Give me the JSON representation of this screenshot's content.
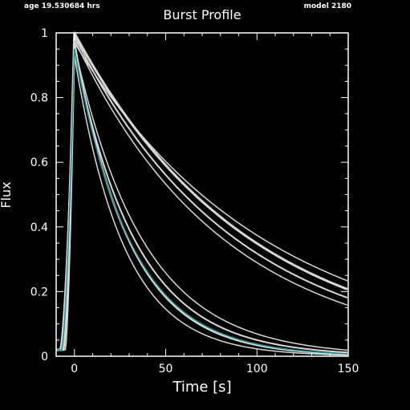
{
  "header": {
    "age_label": "age 19.530684 hrs",
    "model_label": "model 2180"
  },
  "colors": {
    "background": "#000000",
    "axes": "#ffffff",
    "curve": "#d8d8d8",
    "observed": "#1a8f8f"
  },
  "chart_data": {
    "type": "line",
    "title": "Burst Profile",
    "xlabel": "Time [s]",
    "ylabel": "Flux",
    "xlim": [
      -10,
      150
    ],
    "ylim": [
      0,
      1
    ],
    "xticks": [
      0,
      50,
      100,
      150
    ],
    "yticks": [
      0,
      0.2,
      0.4,
      0.6,
      0.8,
      1
    ],
    "ytick_labels": [
      "0",
      "0.2",
      "0.4",
      "0.6",
      "0.8",
      "1"
    ],
    "grid": false,
    "series": [
      {
        "group": "slow",
        "peak": 1.0,
        "t0": -7,
        "tau": 95,
        "width": 3.0
      },
      {
        "group": "slow",
        "peak": 0.99,
        "t0": -6.5,
        "tau": 88,
        "width": 2.0
      },
      {
        "group": "slow",
        "peak": 0.98,
        "t0": -7.5,
        "tau": 82,
        "width": 1.5
      },
      {
        "group": "slow",
        "peak": 0.97,
        "t0": -8,
        "tau": 105,
        "width": 1.5
      },
      {
        "group": "fast",
        "peak": 0.97,
        "t0": -6,
        "tau": 30,
        "width": 2.5
      },
      {
        "group": "fast",
        "peak": 0.95,
        "t0": -7,
        "tau": 34,
        "width": 2.0
      },
      {
        "group": "fast",
        "peak": 0.93,
        "t0": -5,
        "tau": 27,
        "width": 1.5
      },
      {
        "group": "fast",
        "peak": 0.96,
        "t0": -8,
        "tau": 38,
        "width": 1.5
      },
      {
        "group": "observed",
        "peak": 0.95,
        "t0": -7,
        "tau": 31,
        "width": 1.5
      }
    ]
  }
}
